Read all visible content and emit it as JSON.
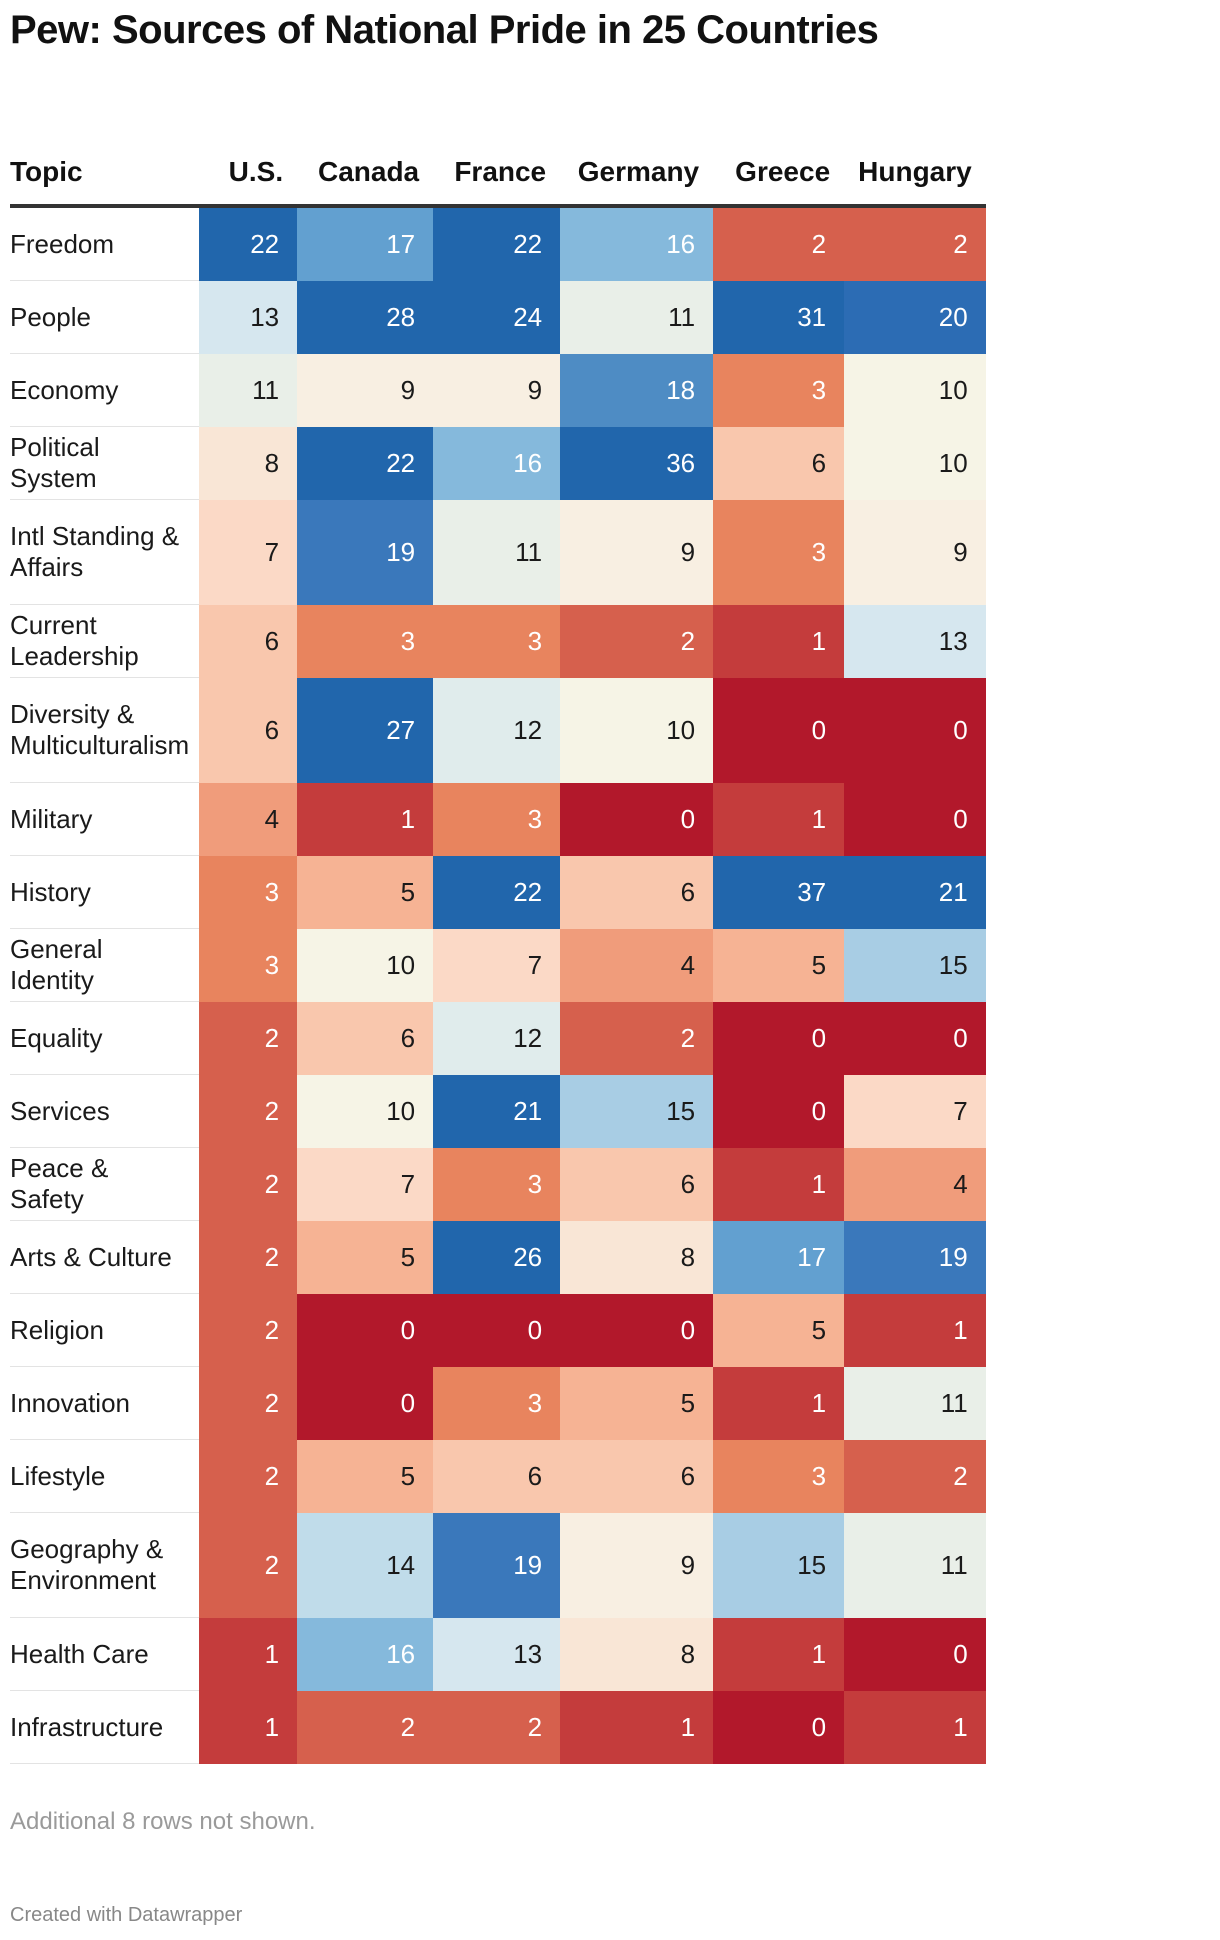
{
  "title": "Pew: Sources of National Pride in 25 Countries",
  "note": "Additional 8 rows not shown.",
  "credit": "Created with Datawrapper",
  "chart_data": {
    "type": "heatmap",
    "title": "Pew: Sources of National Pride in 25 Countries",
    "row_header": "Topic",
    "columns": [
      "U.S.",
      "Canada",
      "France",
      "Germany",
      "Greece",
      "Hungary"
    ],
    "rows": [
      {
        "topic": "Freedom",
        "values": [
          22,
          17,
          22,
          16,
          2,
          2
        ]
      },
      {
        "topic": "People",
        "values": [
          13,
          28,
          24,
          11,
          31,
          20
        ]
      },
      {
        "topic": "Economy",
        "values": [
          11,
          9,
          9,
          18,
          3,
          10
        ]
      },
      {
        "topic": "Political System",
        "values": [
          8,
          22,
          16,
          36,
          6,
          10
        ]
      },
      {
        "topic": "Intl Standing & Affairs",
        "values": [
          7,
          19,
          11,
          9,
          3,
          9
        ]
      },
      {
        "topic": "Current Leadership",
        "values": [
          6,
          3,
          3,
          2,
          1,
          13
        ]
      },
      {
        "topic": "Diversity & Multiculturalism",
        "values": [
          6,
          27,
          12,
          10,
          0,
          0
        ]
      },
      {
        "topic": "Military",
        "values": [
          4,
          1,
          3,
          0,
          1,
          0
        ]
      },
      {
        "topic": "History",
        "values": [
          3,
          5,
          22,
          6,
          37,
          21
        ]
      },
      {
        "topic": "General Identity",
        "values": [
          3,
          10,
          7,
          4,
          5,
          15
        ]
      },
      {
        "topic": "Equality",
        "values": [
          2,
          6,
          12,
          2,
          0,
          0
        ]
      },
      {
        "topic": "Services",
        "values": [
          2,
          10,
          21,
          15,
          0,
          7
        ]
      },
      {
        "topic": "Peace & Safety",
        "values": [
          2,
          7,
          3,
          6,
          1,
          4
        ]
      },
      {
        "topic": "Arts & Culture",
        "values": [
          2,
          5,
          26,
          8,
          17,
          19
        ]
      },
      {
        "topic": "Religion",
        "values": [
          2,
          0,
          0,
          0,
          5,
          1
        ]
      },
      {
        "topic": "Innovation",
        "values": [
          2,
          0,
          3,
          5,
          1,
          11
        ]
      },
      {
        "topic": "Lifestyle",
        "values": [
          2,
          5,
          6,
          6,
          3,
          2
        ]
      },
      {
        "topic": "Geography & Environment",
        "values": [
          2,
          14,
          19,
          9,
          15,
          11
        ]
      },
      {
        "topic": "Health Care",
        "values": [
          1,
          16,
          13,
          8,
          1,
          0
        ]
      },
      {
        "topic": "Infrastructure",
        "values": [
          1,
          2,
          2,
          1,
          0,
          1
        ]
      }
    ],
    "color_scale": {
      "0": "#b2182b",
      "1": "#c43c3c",
      "2": "#d6604d",
      "3": "#e8845e",
      "4": "#f09c7b",
      "5": "#f6b394",
      "6": "#f9c7ad",
      "7": "#fbd9c6",
      "8": "#f9e6d6",
      "9": "#f8efe2",
      "10": "#f6f4e6",
      "11": "#e9efe8",
      "12": "#e0ecec",
      "13": "#d6e7ef",
      "14": "#c0dcea",
      "15": "#a8cde4",
      "16": "#85b9dc",
      "17": "#62a0d0",
      "18": "#4e8cc4",
      "19": "#3a78bb",
      "20": "#2c6cb4",
      "high": "#2166ac"
    }
  }
}
